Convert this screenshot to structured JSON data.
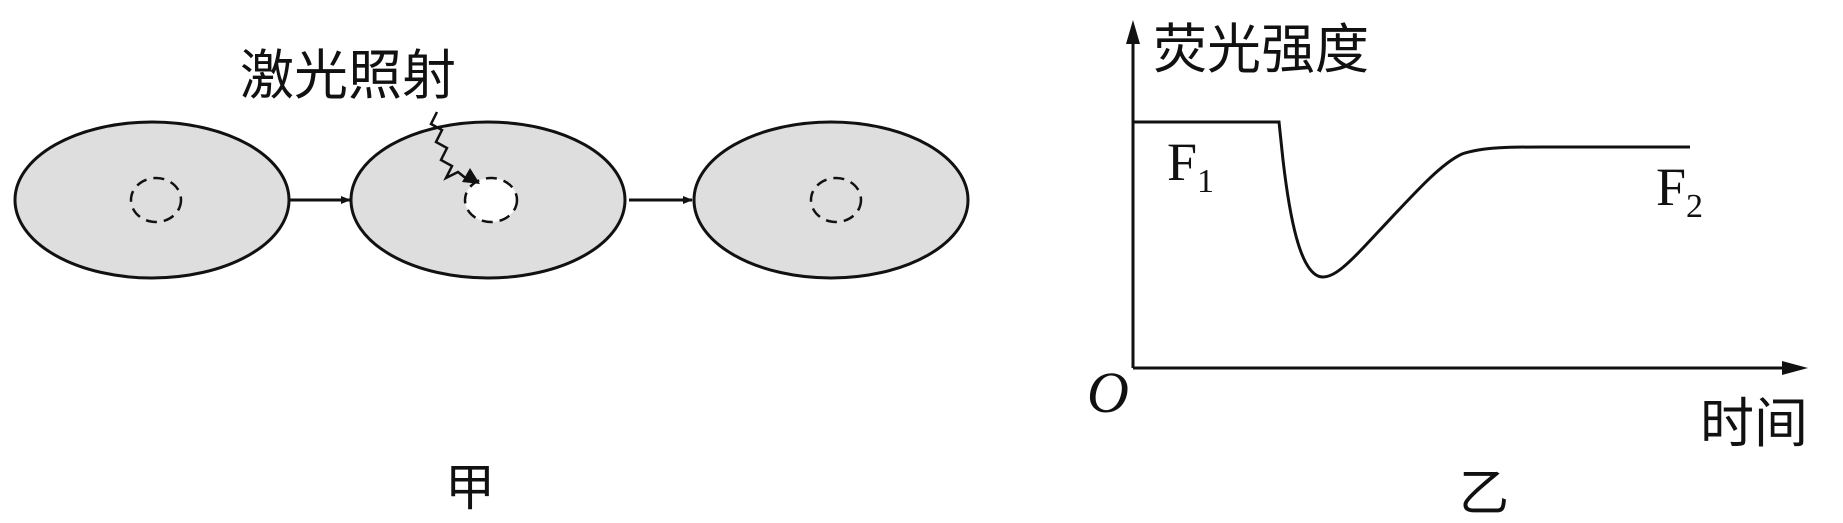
{
  "panel_a": {
    "caption": "甲",
    "laser_label": "激光照射"
  },
  "panel_b": {
    "caption": "乙",
    "y_axis_label": "荧光强度",
    "x_axis_label": "时间",
    "origin_label": "O",
    "f1": {
      "base": "F",
      "sub": "1"
    },
    "f2": {
      "base": "F",
      "sub": "2"
    }
  },
  "colors": {
    "ink": "#111111",
    "cell_fill": "#dedede"
  }
}
